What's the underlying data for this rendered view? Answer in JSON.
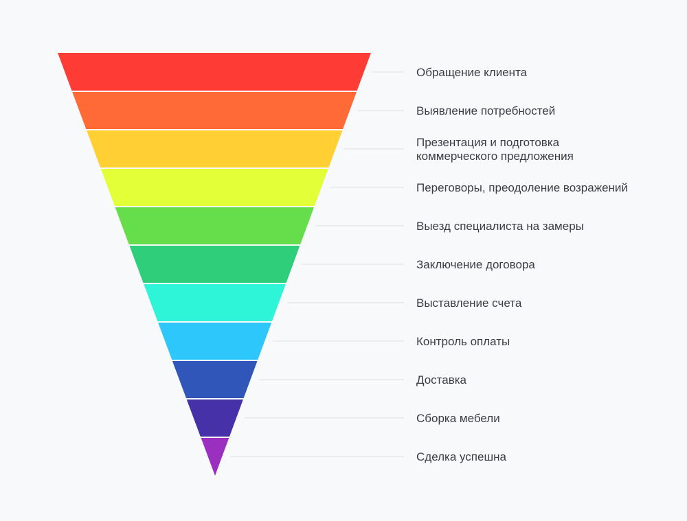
{
  "funnel": {
    "stages": [
      {
        "label": [
          "Обращение клиента"
        ],
        "color": "#ff3b36"
      },
      {
        "label": [
          "Выявление потребностей"
        ],
        "color": "#ff6a36"
      },
      {
        "label": [
          "Презентация и подготовка",
          "коммерческого предложения"
        ],
        "color": "#ffcf33"
      },
      {
        "label": [
          "Переговоры, преодоление возражений"
        ],
        "color": "#e2ff37"
      },
      {
        "label": [
          "Выезд специалиста на замеры"
        ],
        "color": "#66dd4a"
      },
      {
        "label": [
          "Заключение договора"
        ],
        "color": "#2fce7a"
      },
      {
        "label": [
          "Выставление счета"
        ],
        "color": "#2ef4d8"
      },
      {
        "label": [
          "Контроль оплаты"
        ],
        "color": "#2ec7fb"
      },
      {
        "label": [
          "Доставка"
        ],
        "color": "#2f56b8"
      },
      {
        "label": [
          "Сборка мебели"
        ],
        "color": "#4631a8"
      },
      {
        "label": [
          "Сделка успешна"
        ],
        "color": "#9b2fbf"
      }
    ],
    "leader_color": "#dde0e6",
    "gap_color": "#ffffff"
  }
}
